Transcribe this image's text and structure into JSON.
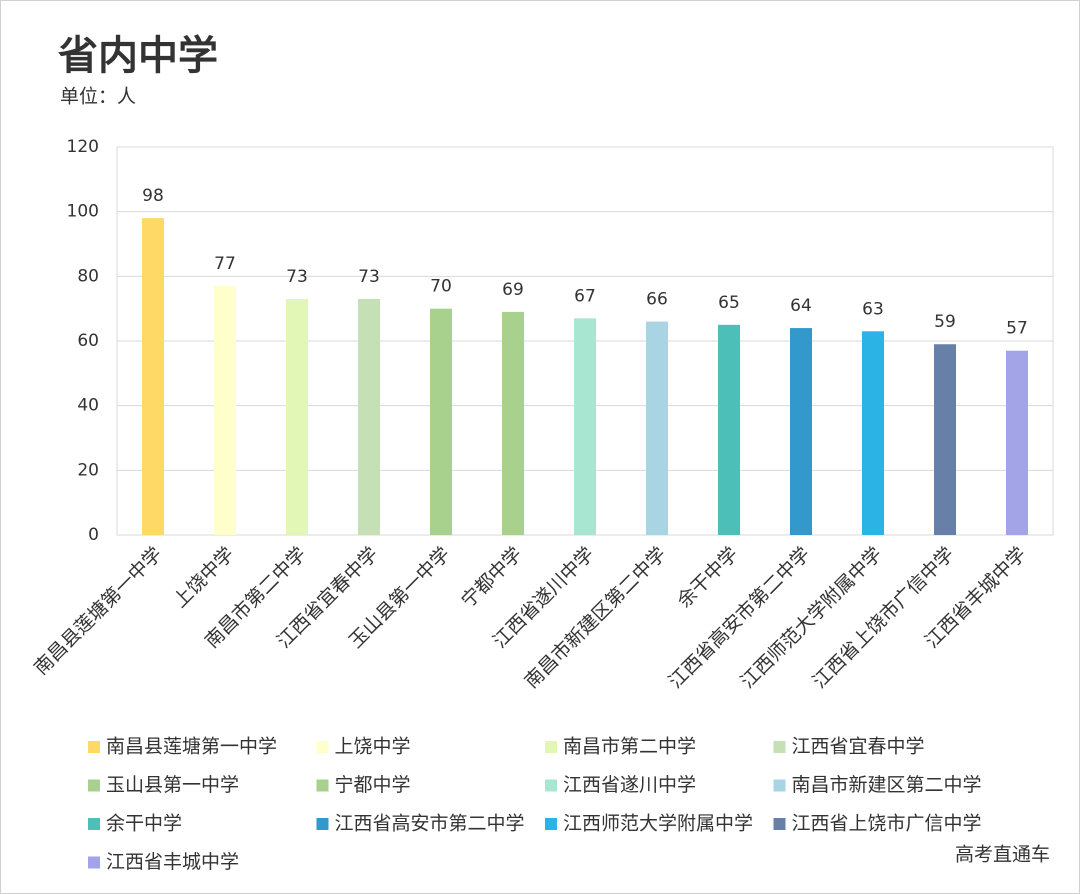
{
  "chart_data": {
    "type": "bar",
    "title": "省内中学",
    "subtitle": "单位：人",
    "categories": [
      "南昌县莲塘第一中学",
      "上饶中学",
      "南昌市第二中学",
      "江西省宜春中学",
      "玉山县第一中学",
      "宁都中学",
      "江西省遂川中学",
      "南昌市新建区第二中学",
      "余干中学",
      "江西省高安市第二中学",
      "江西师范大学附属中学",
      "江西省上饶市广信中学",
      "江西省丰城中学"
    ],
    "values": [
      98,
      77,
      73,
      73,
      70,
      69,
      67,
      66,
      65,
      64,
      63,
      59,
      57
    ],
    "colors": [
      "#FFD966",
      "#FFFFCC",
      "#E2F7B6",
      "#C5E0B4",
      "#A9D18E",
      "#A9D18E",
      "#A8E6D1",
      "#A8D4E4",
      "#4CBFB9",
      "#3399CC",
      "#2BB3E6",
      "#6680A8",
      "#A3A3E8"
    ],
    "ylim": [
      0,
      120
    ],
    "yticks": [
      0,
      20,
      40,
      60,
      80,
      100,
      120
    ],
    "grid": true,
    "legend": "bottom"
  },
  "watermark": "高考直通车"
}
